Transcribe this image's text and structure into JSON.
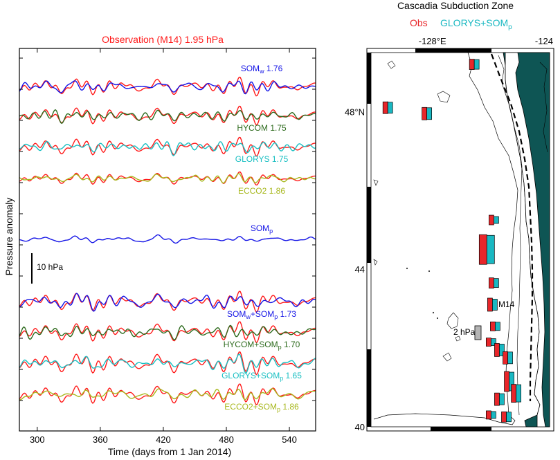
{
  "chart_data": [
    {
      "type": "line",
      "title": "Observation (M14) 1.95 hPa",
      "xlabel": "Time (days from 1 Jan 2014)",
      "ylabel": "Pressure anomaly",
      "xlim": [
        283,
        565
      ],
      "x_ticks": [
        300,
        360,
        420,
        480,
        540
      ],
      "scale_bar": "10 hPa",
      "colors": {
        "obs": "#ff1a1a",
        "som": "#1414e6",
        "hycom": "#2e6b1e",
        "glorys": "#19bfc2",
        "ecco2": "#a8b81e"
      },
      "panels": [
        {
          "name": "SOMw",
          "label_main": "SOM",
          "label_sub": "w",
          "label_tail": " 1.76",
          "color_key": "som",
          "has_obs": true,
          "seed": 11,
          "amp": 1.0
        },
        {
          "name": "HYCOM",
          "label_main": "HYCOM 1.75",
          "label_sub": "",
          "label_tail": "",
          "color_key": "hycom",
          "has_obs": true,
          "seed": 12,
          "amp": 1.0
        },
        {
          "name": "GLORYS",
          "label_main": "GLORYS 1.75",
          "label_sub": "",
          "label_tail": "",
          "color_key": "glorys",
          "has_obs": true,
          "seed": 13,
          "amp": 1.0
        },
        {
          "name": "ECCO2",
          "label_main": "ECCO2 1.86",
          "label_sub": "",
          "label_tail": "",
          "color_key": "ecco2",
          "has_obs": true,
          "seed": 14,
          "amp": 0.7
        },
        {
          "name": "SOMp",
          "label_main": "SOM",
          "label_sub": "p",
          "label_tail": "",
          "color_key": "som",
          "has_obs": false,
          "seed": 15,
          "amp": 0.45
        },
        {
          "name": "SOMw+SOMp",
          "label_main": "SOM",
          "label_sub": "w",
          "label_tail": "+SOM",
          "label_sub2": "p",
          "label_tail2": " 1.73",
          "color_key": "som",
          "has_obs": true,
          "seed": 16,
          "amp": 1.1
        },
        {
          "name": "HYCOM+SOMp",
          "label_main": "HYCOM+SOM",
          "label_sub": "p",
          "label_tail": " 1.70",
          "color_key": "hycom",
          "has_obs": true,
          "seed": 17,
          "amp": 1.1
        },
        {
          "name": "GLORYS+SOMp",
          "label_main": "GLORYS+SOM",
          "label_sub": "p",
          "label_tail": " 1.65",
          "color_key": "glorys",
          "has_obs": true,
          "seed": 18,
          "amp": 1.2
        },
        {
          "name": "ECCO2+SOMp",
          "label_main": "ECCO2+SOM",
          "label_sub": "p",
          "label_tail": " 1.86",
          "color_key": "ecco2",
          "has_obs": true,
          "seed": 19,
          "amp": 1.1
        }
      ]
    },
    {
      "type": "bar",
      "title": "Cascadia Subduction Zone",
      "legend": [
        {
          "label": "Obs",
          "color": "#e8262a"
        },
        {
          "label": "GLORYS+SOM",
          "sub": "p",
          "color": "#19b8c2"
        }
      ],
      "lon_ticks": [
        {
          "value": -128,
          "label": "-128°E"
        },
        {
          "value": -124,
          "label": "-124"
        }
      ],
      "lat_ticks": [
        {
          "value": 48,
          "label": "48°N"
        },
        {
          "value": 44,
          "label": "44"
        },
        {
          "value": 40,
          "label": "40"
        }
      ],
      "lon_range": [
        -130.2,
        -123.8
      ],
      "lat_range": [
        40,
        49.5
      ],
      "annotations": {
        "station": "M14",
        "scale_label": "2 hPa",
        "scale_value_hpa": 2
      },
      "stations": [
        {
          "lon": -126.5,
          "lat": 49.2,
          "obs": 1.5,
          "model": 1.4
        },
        {
          "lon": -129.6,
          "lat": 48.1,
          "obs": 1.7,
          "model": 1.6
        },
        {
          "lon": -128.2,
          "lat": 47.95,
          "obs": 1.8,
          "model": 1.7
        },
        {
          "lon": -125.8,
          "lat": 45.25,
          "obs": 1.4,
          "model": 1.0
        },
        {
          "lon": -126.05,
          "lat": 44.5,
          "obs": 4.3,
          "model": 4.1
        },
        {
          "lon": -125.8,
          "lat": 43.65,
          "obs": 1.5,
          "model": 1.3
        },
        {
          "lon": -125.85,
          "lat": 43.1,
          "obs": 1.9,
          "model": 1.6
        },
        {
          "lon": -125.75,
          "lat": 42.55,
          "obs": 1.3,
          "model": 1.2
        },
        {
          "lon": -125.9,
          "lat": 42.15,
          "obs": 1.2,
          "model": 1.0
        },
        {
          "lon": -125.6,
          "lat": 41.95,
          "obs": 1.9,
          "model": 1.7
        },
        {
          "lon": -125.3,
          "lat": 41.75,
          "obs": 1.8,
          "model": 1.7
        },
        {
          "lon": -125.25,
          "lat": 41.15,
          "obs": 2.9,
          "model": 2.7
        },
        {
          "lon": -125.0,
          "lat": 40.85,
          "obs": 2.6,
          "model": 2.5
        },
        {
          "lon": -125.6,
          "lat": 40.7,
          "obs": 1.8,
          "model": 1.6
        },
        {
          "lon": -125.9,
          "lat": 40.3,
          "obs": 1.2,
          "model": 1.0
        },
        {
          "lon": -125.35,
          "lat": 40.25,
          "obs": 1.5,
          "model": 1.4
        }
      ]
    }
  ]
}
